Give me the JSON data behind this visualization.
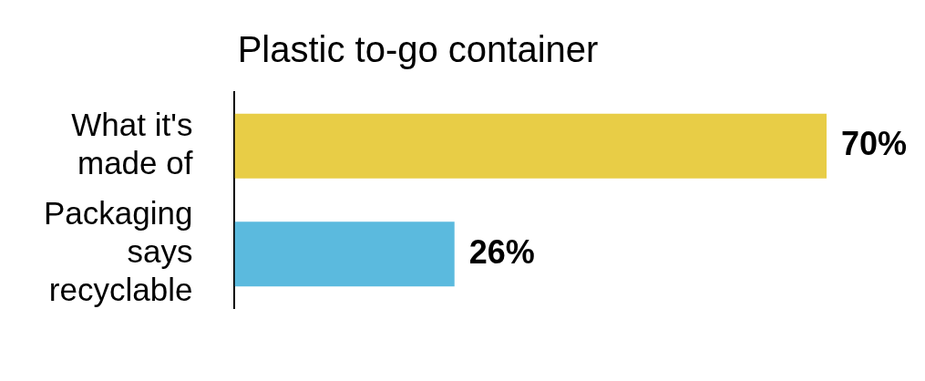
{
  "chart_data": {
    "type": "bar",
    "orientation": "horizontal",
    "title": "Plastic to-go container",
    "categories": [
      "What it's made of",
      "Packaging says recyclable"
    ],
    "values": [
      70,
      26
    ],
    "colors": [
      "#e8cd46",
      "#5bbade"
    ],
    "value_labels": [
      "70%",
      "26%"
    ],
    "tick_labels": "y",
    "legend": false
  }
}
